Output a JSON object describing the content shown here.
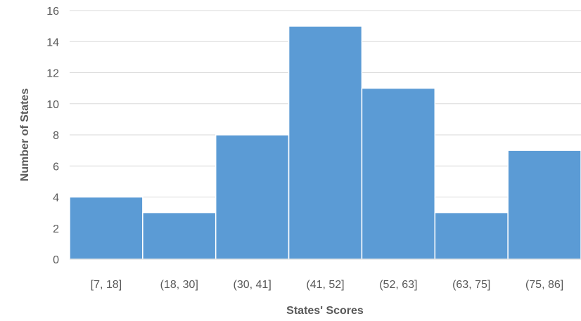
{
  "chart_data": {
    "type": "bar",
    "title": "",
    "xlabel": "States' Scores",
    "ylabel": "Number of States",
    "categories": [
      "[7, 18]",
      "(18, 30]",
      "(30, 41]",
      "(41, 52]",
      "(52, 63]",
      "(63, 75]",
      "(75, 86]"
    ],
    "values": [
      4,
      3,
      8,
      15,
      11,
      3,
      7
    ],
    "ylim": [
      0,
      16
    ],
    "yticks": [
      0,
      2,
      4,
      6,
      8,
      10,
      12,
      14,
      16
    ],
    "grid": "horizontal",
    "legend": "none",
    "bar_color": "#5b9bd5",
    "bar_edge_color": "#ffffff",
    "grid_color": "#d9d9d9",
    "text_color": "#595959"
  }
}
